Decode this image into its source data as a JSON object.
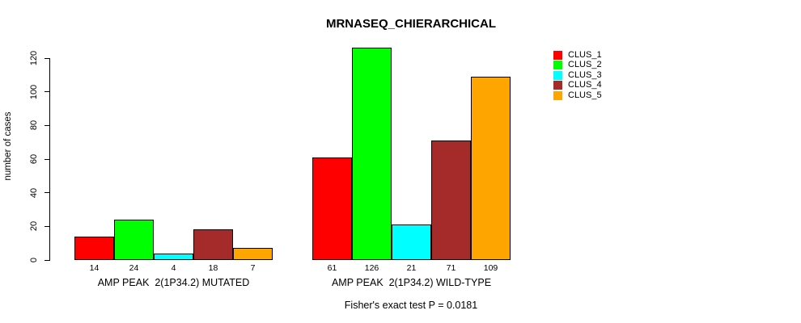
{
  "chart_data": {
    "type": "bar",
    "title": "MRNASEQ_CHIERARCHICAL",
    "ylabel": "number of cases",
    "xlabel": "",
    "ylim": [
      0,
      120
    ],
    "yticks": [
      0,
      20,
      40,
      60,
      80,
      100,
      120
    ],
    "grid": false,
    "legend_position": "top-right",
    "categories": [
      "AMP PEAK  2(1P34.2) MUTATED",
      "AMP PEAK  2(1P34.2) WILD-TYPE"
    ],
    "series": [
      {
        "name": "CLUS_1",
        "color": "#FF0000",
        "values": [
          14,
          61
        ]
      },
      {
        "name": "CLUS_2",
        "color": "#00FF00",
        "values": [
          24,
          126
        ]
      },
      {
        "name": "CLUS_3",
        "color": "#00FFFF",
        "values": [
          4,
          21
        ]
      },
      {
        "name": "CLUS_4",
        "color": "#A52A2A",
        "values": [
          18,
          71
        ]
      },
      {
        "name": "CLUS_5",
        "color": "#FFA500",
        "values": [
          7,
          109
        ]
      }
    ],
    "bar_value_labels_shown": true,
    "annotation": "Fisher's exact test P = 0.0181"
  }
}
